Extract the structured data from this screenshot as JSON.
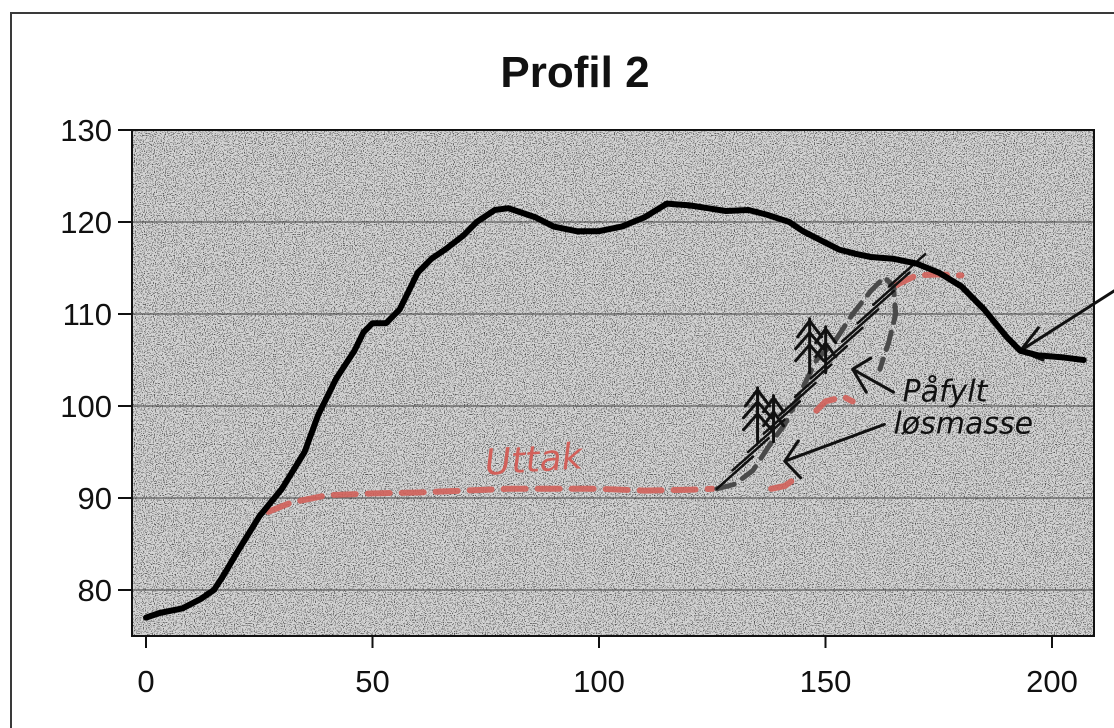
{
  "chart_data": {
    "type": "line",
    "title": "Profil 2",
    "xlabel": "",
    "ylabel": "",
    "xlim": [
      0,
      210
    ],
    "ylim": [
      75,
      130
    ],
    "xticks": [
      0,
      50,
      100,
      150,
      200
    ],
    "yticks": [
      80,
      90,
      100,
      110,
      120,
      130
    ],
    "grid": "horizontal",
    "series": [
      {
        "x": [
          0,
          3,
          8,
          12,
          15,
          17,
          20,
          25,
          30,
          35,
          38,
          42,
          46,
          48,
          50,
          53,
          56,
          60,
          63,
          66,
          70,
          73,
          77,
          80,
          86,
          90,
          95,
          100,
          105,
          110,
          115,
          120,
          124,
          128,
          133,
          137,
          142,
          145,
          149,
          153,
          157,
          160,
          165,
          170,
          175,
          180,
          185,
          190,
          193,
          197,
          202,
          207
        ],
        "y": [
          77,
          77.5,
          78,
          79,
          80,
          81.5,
          84,
          88,
          91,
          95,
          99,
          103,
          106,
          108,
          109,
          109,
          110.5,
          114.5,
          116,
          117,
          118.5,
          120,
          121.3,
          121.5,
          120.5,
          119.5,
          119,
          119,
          119.5,
          120.5,
          122,
          121.8,
          121.5,
          121.2,
          121.3,
          120.8,
          120,
          119,
          118,
          117,
          116.5,
          116.2,
          116,
          115.5,
          114.5,
          113,
          110.5,
          107.5,
          106,
          105.5,
          105.3,
          105
        ]
      }
    ],
    "annotations": [
      {
        "text": "Uttak",
        "x": 75,
        "y": 92.5,
        "color": "#d2605a"
      },
      {
        "text": "Påfylt",
        "x": 167,
        "y": 100.5,
        "color": "#111111"
      },
      {
        "text": "løsmasse",
        "x": 165,
        "y": 97,
        "color": "#111111"
      }
    ],
    "sketch_paths": {
      "uttak_line": {
        "color": "#d2605a",
        "x": [
          27,
          32,
          40,
          50,
          60,
          70,
          80,
          90,
          100,
          110,
          120,
          125
        ],
        "y": [
          88.5,
          89.5,
          90.3,
          90.5,
          90.6,
          90.8,
          91,
          91,
          91,
          90.8,
          90.9,
          91
        ]
      },
      "cut_upper": {
        "color": "#d2605a",
        "x": [
          165,
          170,
          175,
          180
        ],
        "y": [
          113,
          114.2,
          114.3,
          114.2
        ]
      },
      "cut_middle": {
        "color": "#d2605a",
        "x": [
          148,
          150,
          154,
          156
        ],
        "y": [
          99.5,
          100.5,
          101,
          100.5
        ]
      },
      "cut_lower": {
        "color": "#d2605a",
        "x": [
          138,
          141,
          143,
          144
        ],
        "y": [
          91,
          91.3,
          92,
          92.5
        ]
      },
      "fill_outline": {
        "color": "#4a4a4a",
        "x": [
          126,
          130,
          134,
          138,
          141,
          143,
          146,
          148,
          152,
          156,
          160,
          163,
          165,
          165.5,
          164,
          162
        ],
        "y": [
          91,
          91.5,
          93,
          96,
          98,
          100,
          103,
          105,
          107,
          110,
          112.5,
          114,
          113,
          110,
          107,
          104
        ]
      }
    }
  }
}
